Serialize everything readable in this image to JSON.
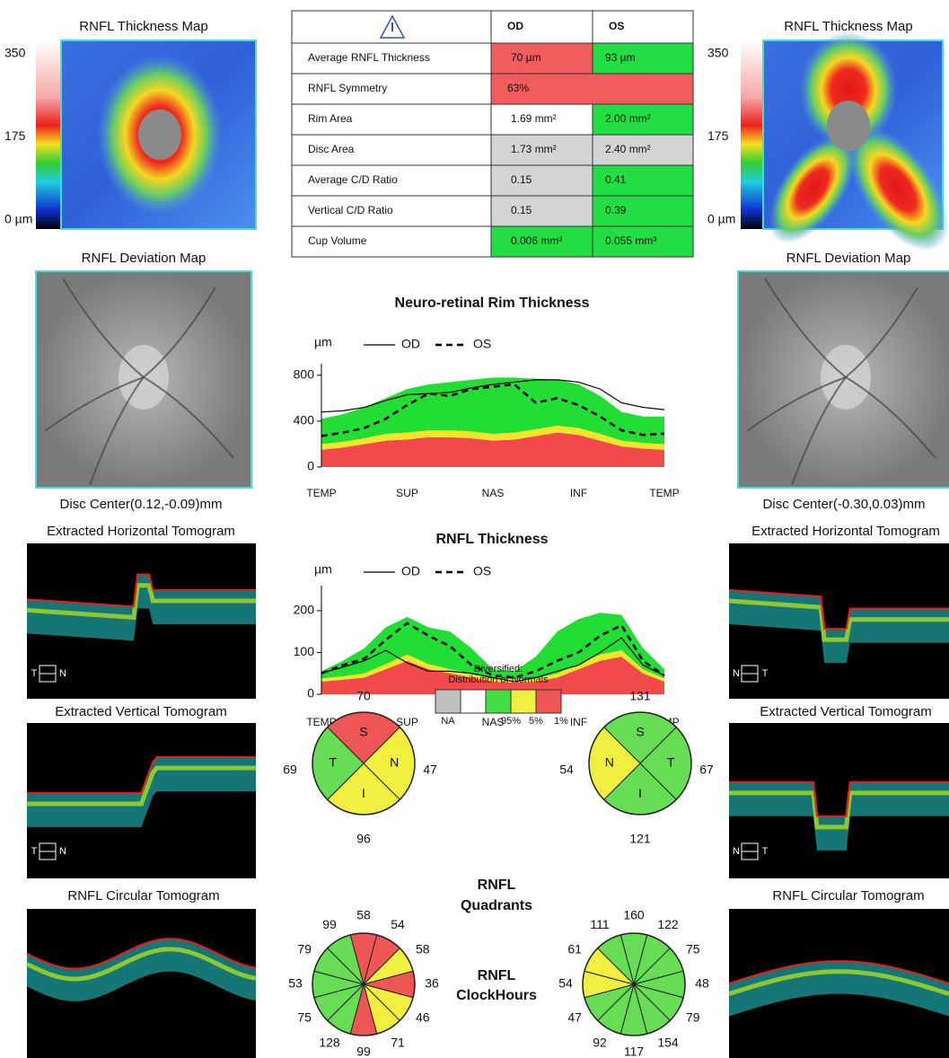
{
  "left": {
    "thickness_map_title": "RNFL Thickness Map",
    "colorbar_ticks": [
      350,
      175,
      {
        "value": 0,
        "label": "0 µm"
      }
    ],
    "deviation_map_title": "RNFL Deviation Map",
    "disc_center": "Disc Center(0.12,-0.09)mm",
    "horizontal_title": "Extracted Horizontal Tomogram",
    "horizontal_orientation": [
      "T",
      "N"
    ],
    "vertical_title": "Extracted Vertical Tomogram",
    "vertical_orientation": [
      "T",
      "N"
    ],
    "circular_title": "RNFL Circular Tomogram"
  },
  "right": {
    "thickness_map_title": "RNFL Thickness Map",
    "colorbar_ticks": [
      350,
      175,
      {
        "value": 0,
        "label": "0 µm"
      }
    ],
    "deviation_map_title": "RNFL Deviation Map",
    "disc_center": "Disc Center(-0.30,0.03)mm",
    "horizontal_title": "Extracted Horizontal Tomogram",
    "horizontal_orientation": [
      "N",
      "T"
    ],
    "vertical_title": "Extracted Vertical Tomogram",
    "vertical_orientation": [
      "N",
      "T"
    ],
    "circular_title": "RNFL Circular Tomogram"
  },
  "table": {
    "header": [
      "OD",
      "OS"
    ],
    "rows": [
      {
        "label": "Average RNFL Thickness",
        "od": "70 µm",
        "os": "93 µm",
        "od_color": "#f25c5c",
        "os_color": "#22dd44"
      },
      {
        "label": "RNFL Symmetry",
        "both": "63%",
        "both_color": "#f25c5c"
      },
      {
        "label": "Rim Area",
        "od": "1.69 mm²",
        "os": "2.00 mm²",
        "od_color": "#ffffff",
        "os_color": "#22dd44"
      },
      {
        "label": "Disc Area",
        "od": "1.73 mm²",
        "os": "2.40 mm²",
        "od_color": "#d4d4d4",
        "os_color": "#d4d4d4"
      },
      {
        "label": "Average C/D Ratio",
        "od": "0.15",
        "os": "0.41",
        "od_color": "#d4d4d4",
        "os_color": "#22dd44"
      },
      {
        "label": "Vertical C/D Ratio",
        "od": "0.15",
        "os": "0.39",
        "od_color": "#d4d4d4",
        "os_color": "#22dd44"
      },
      {
        "label": "Cup Volume",
        "od": "0.006 mm³",
        "os": "0.055 mm³",
        "od_color": "#22dd44",
        "os_color": "#22dd44"
      }
    ]
  },
  "chart_data": [
    {
      "type": "line",
      "title": "Neuro-retinal Rim Thickness",
      "y_label": "µm",
      "categories": [
        "TEMP",
        null,
        null,
        null,
        "SUP",
        null,
        null,
        null,
        "NAS",
        null,
        null,
        null,
        "INF",
        null,
        null,
        null,
        "TEMP"
      ],
      "ylim": [
        0,
        900
      ],
      "yticks": [
        0,
        400,
        800
      ],
      "series": [
        {
          "name": "OD",
          "color": "#000000",
          "line_style": "solid",
          "values": [
            480,
            490,
            520,
            580,
            630,
            640,
            650,
            690,
            720,
            740,
            760,
            760,
            740,
            680,
            560,
            520,
            500
          ]
        },
        {
          "name": "OS",
          "color": "#000000",
          "line_style": "dashed",
          "values": [
            270,
            300,
            340,
            420,
            540,
            640,
            620,
            680,
            700,
            720,
            560,
            600,
            540,
            440,
            320,
            280,
            290
          ]
        }
      ],
      "bands": [
        {
          "color": "#f24a4a",
          "values": [
            150,
            170,
            200,
            230,
            240,
            260,
            260,
            250,
            230,
            240,
            270,
            300,
            280,
            230,
            180,
            160,
            150
          ]
        },
        {
          "color": "#f2e628",
          "values": [
            50,
            50,
            50,
            60,
            60,
            60,
            60,
            60,
            60,
            60,
            60,
            60,
            60,
            60,
            50,
            50,
            50
          ]
        },
        {
          "color": "#22dd33",
          "values": [
            220,
            240,
            270,
            310,
            380,
            400,
            420,
            450,
            490,
            480,
            440,
            400,
            380,
            330,
            250,
            230,
            240
          ]
        }
      ]
    },
    {
      "type": "line",
      "title": "RNFL Thickness",
      "y_label": "µm",
      "categories": [
        "TEMP",
        null,
        null,
        null,
        "SUP",
        null,
        null,
        null,
        "NAS",
        null,
        null,
        null,
        "INF",
        null,
        null,
        null,
        "TEMP"
      ],
      "ylim": [
        0,
        260
      ],
      "yticks": [
        0,
        100,
        200
      ],
      "series": [
        {
          "name": "OD",
          "color": "#000000",
          "line_style": "solid",
          "values": [
            50,
            65,
            80,
            105,
            75,
            55,
            55,
            50,
            40,
            30,
            40,
            55,
            70,
            100,
            135,
            70,
            45
          ]
        },
        {
          "name": "OS",
          "color": "#000000",
          "line_style": "dashed",
          "values": [
            50,
            70,
            85,
            130,
            170,
            140,
            115,
            70,
            45,
            40,
            55,
            80,
            100,
            140,
            165,
            80,
            45
          ]
        }
      ],
      "bands": [
        {
          "color": "#f24a4a",
          "values": [
            30,
            35,
            40,
            60,
            80,
            60,
            50,
            40,
            30,
            28,
            30,
            40,
            60,
            80,
            90,
            50,
            30
          ]
        },
        {
          "color": "#f2e628",
          "values": [
            8,
            8,
            10,
            12,
            15,
            12,
            10,
            8,
            8,
            8,
            8,
            10,
            12,
            15,
            15,
            10,
            8
          ]
        },
        {
          "color": "#22dd33",
          "values": [
            17,
            37,
            60,
            88,
            90,
            88,
            90,
            62,
            22,
            19,
            52,
            100,
            108,
            100,
            85,
            50,
            22
          ]
        }
      ]
    }
  ],
  "normals_legend": {
    "title": [
      "Diversified:",
      "Distribution of Normals"
    ],
    "items": [
      {
        "label": "NA",
        "color": "#c0c0c0"
      },
      {
        "label": "",
        "color": "#ffffff"
      },
      {
        "label": "95%",
        "color": "#44dd44"
      },
      {
        "label": "5%",
        "color": "#f0ef40"
      },
      {
        "label": "1%",
        "color": "#ee5555"
      }
    ]
  },
  "quadrants": {
    "label_lines": [
      "RNFL",
      "Quadrants"
    ],
    "od": [
      {
        "letter": "S",
        "value": 70,
        "color": "#ee5555"
      },
      {
        "letter": "N",
        "value": 47,
        "color": "#f0ef40"
      },
      {
        "letter": "I",
        "value": 96,
        "color": "#f0ef40"
      },
      {
        "letter": "T",
        "value": 69,
        "color": "#66dd55"
      }
    ],
    "os": [
      {
        "letter": "S",
        "value": 131,
        "color": "#66dd55"
      },
      {
        "letter": "T",
        "value": 67,
        "color": "#66dd55"
      },
      {
        "letter": "I",
        "value": 121,
        "color": "#66dd55"
      },
      {
        "letter": "N",
        "value": 54,
        "color": "#f0ef40"
      }
    ]
  },
  "clockhours": {
    "label_lines": [
      "RNFL",
      "ClockHours"
    ],
    "od": {
      "values": [
        58,
        54,
        58,
        36,
        46,
        71,
        99,
        128,
        75,
        53,
        79,
        99
      ],
      "colors": [
        "#ee5555",
        "#ee5555",
        "#f0ef40",
        "#ee5555",
        "#f0ef40",
        "#f0ef40",
        "#ee5555",
        "#66dd55",
        "#66dd55",
        "#66dd55",
        "#66dd55",
        "#66dd55"
      ]
    },
    "os": {
      "values": [
        160,
        122,
        75,
        48,
        79,
        154,
        117,
        92,
        47,
        54,
        61,
        111
      ],
      "colors": [
        "#66dd55",
        "#66dd55",
        "#66dd55",
        "#66dd55",
        "#66dd55",
        "#66dd55",
        "#66dd55",
        "#66dd55",
        "#66dd55",
        "#f0ef40",
        "#f0ef40",
        "#66dd55"
      ]
    }
  }
}
